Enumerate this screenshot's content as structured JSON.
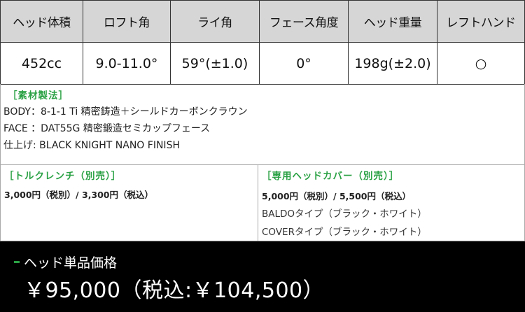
{
  "spec_table": {
    "headers": [
      "ヘッド体積",
      "ロフト角",
      "ライ角",
      "フェース角度",
      "ヘッド重量",
      "レフトハンド"
    ],
    "values": [
      "452cc",
      "9.0-11.0°",
      "59°(±1.0)",
      "0°",
      "198g(±2.0)",
      "○"
    ]
  },
  "materials": {
    "title": "［素材製法］",
    "lines": [
      "BODY：8-1-1 Ti 精密鋳造＋シールドカーボンクラウン",
      "FACE ：DAT55G 精密鍛造セミカップフェース",
      "仕上げ: BLACK KNIGHT NANO FINISH"
    ]
  },
  "torque_wrench": {
    "title": "［トルクレンチ（別売）］",
    "price": "3,000円（税別）/ 3,300円（税込）"
  },
  "head_cover": {
    "title": "［専用ヘッドカバー（別売）］",
    "price": "5,000円（税別）/ 5,500円（税込）",
    "types": [
      "BALDOタイプ（ブラック・ホワイト）",
      "COVERタイプ（ブラック・ホワイト）"
    ]
  },
  "price": {
    "label": "ヘッド単品価格",
    "amount": "￥95,000（税込:￥104,500）"
  },
  "colors": {
    "accent": "#2aa144",
    "header_bg": "#d6d6d6",
    "price_bg": "#000000"
  }
}
